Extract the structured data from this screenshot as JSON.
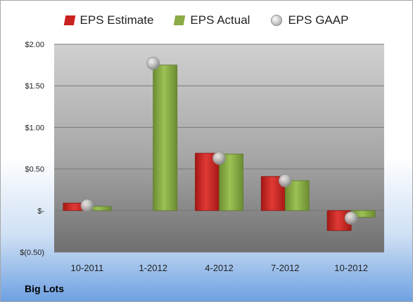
{
  "chart_data": {
    "type": "bar",
    "categories": [
      "10-2011",
      "1-2012",
      "4-2012",
      "7-2012",
      "10-2012"
    ],
    "series": [
      {
        "name": "EPS Estimate",
        "values": [
          0.09,
          null,
          0.69,
          0.41,
          -0.24
        ],
        "color": "#c9211f"
      },
      {
        "name": "EPS Actual",
        "values": [
          0.05,
          1.75,
          0.68,
          0.36,
          -0.08
        ],
        "color": "#8aac45"
      },
      {
        "name": "EPS GAAP",
        "values": [
          0.06,
          1.77,
          0.63,
          0.36,
          -0.09
        ],
        "color": "#a9a9a9",
        "marker": "sphere"
      }
    ],
    "yticks": [
      -0.5,
      0,
      0.5,
      1.0,
      1.5,
      2.0
    ],
    "ytick_labels": [
      "$(0.50)",
      "$-",
      "$0.50",
      "$1.00",
      "$1.50",
      "$2.00"
    ],
    "ylim": [
      -0.5,
      2.0
    ],
    "legend_position": "top",
    "grid": true
  },
  "company": "Big Lots"
}
